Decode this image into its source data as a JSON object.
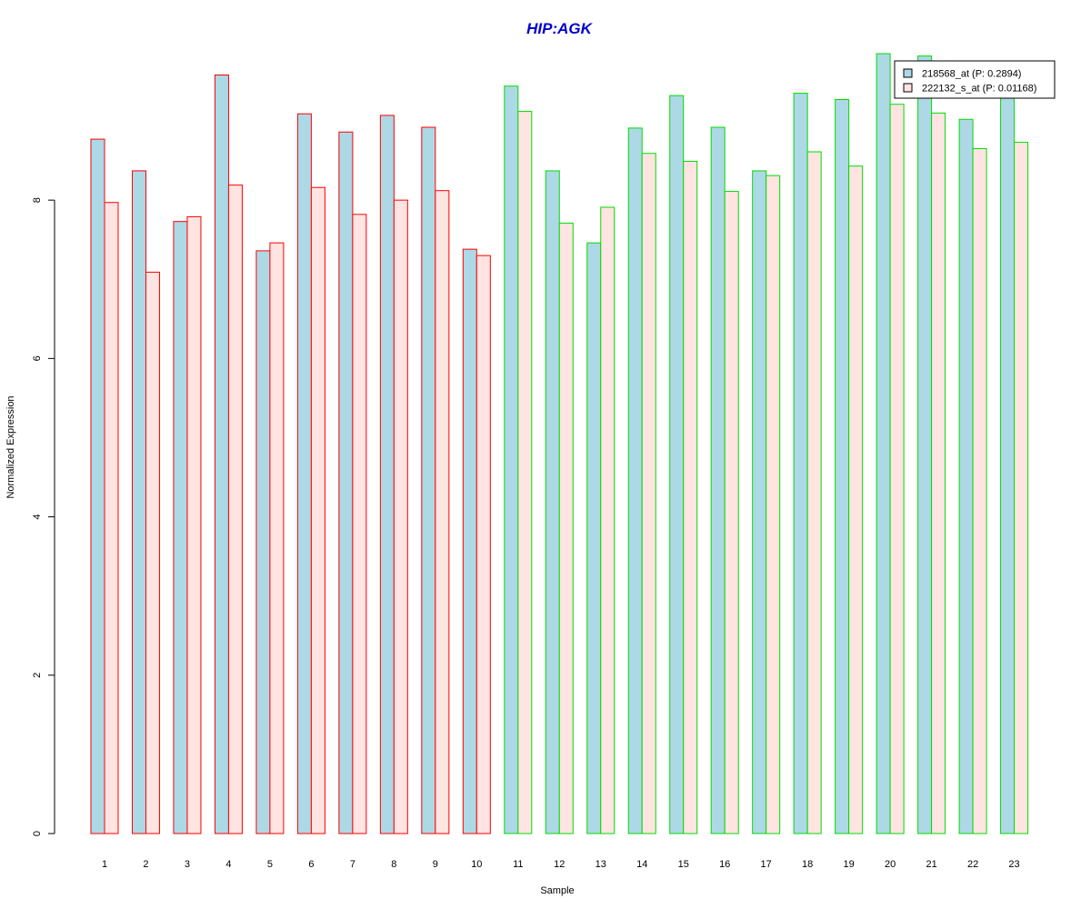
{
  "chart_data": {
    "type": "bar",
    "title": "HIP:AGK",
    "xlabel": "Sample",
    "ylabel": "Normalized Expression",
    "ylim": [
      0,
      9.85
    ],
    "yticks": [
      0,
      2,
      4,
      6,
      8
    ],
    "grid": false,
    "legend_position": "top-right",
    "categories": [
      "1",
      "2",
      "3",
      "4",
      "5",
      "6",
      "7",
      "8",
      "9",
      "10",
      "11",
      "12",
      "13",
      "14",
      "15",
      "16",
      "17",
      "18",
      "19",
      "20",
      "21",
      "22",
      "23"
    ],
    "groups": [
      {
        "samples": [
          "1",
          "2",
          "3",
          "4",
          "5",
          "6",
          "7",
          "8",
          "9",
          "10"
        ],
        "border_color": "#ff0000"
      },
      {
        "samples": [
          "11",
          "12",
          "13",
          "14",
          "15",
          "16",
          "17",
          "18",
          "19",
          "20",
          "21",
          "22",
          "23"
        ],
        "border_color": "#00dd00"
      }
    ],
    "series": [
      {
        "name": "218568_at (P: 0.2894)",
        "color": "#add8e6",
        "values": [
          8.77,
          8.37,
          7.73,
          9.58,
          7.36,
          9.09,
          8.86,
          9.07,
          8.92,
          7.38,
          9.44,
          8.37,
          7.46,
          8.91,
          9.32,
          8.92,
          8.37,
          9.35,
          9.27,
          9.85,
          9.82,
          9.02,
          9.3
        ]
      },
      {
        "name": "222132_s_at (P: 0.01168)",
        "color": "#ffe4e1",
        "values": [
          7.97,
          7.09,
          7.79,
          8.19,
          7.46,
          8.16,
          7.82,
          8.0,
          8.12,
          7.3,
          9.12,
          7.71,
          7.91,
          8.59,
          8.49,
          8.11,
          8.31,
          8.61,
          8.43,
          9.21,
          9.1,
          8.65,
          8.73
        ]
      }
    ]
  }
}
